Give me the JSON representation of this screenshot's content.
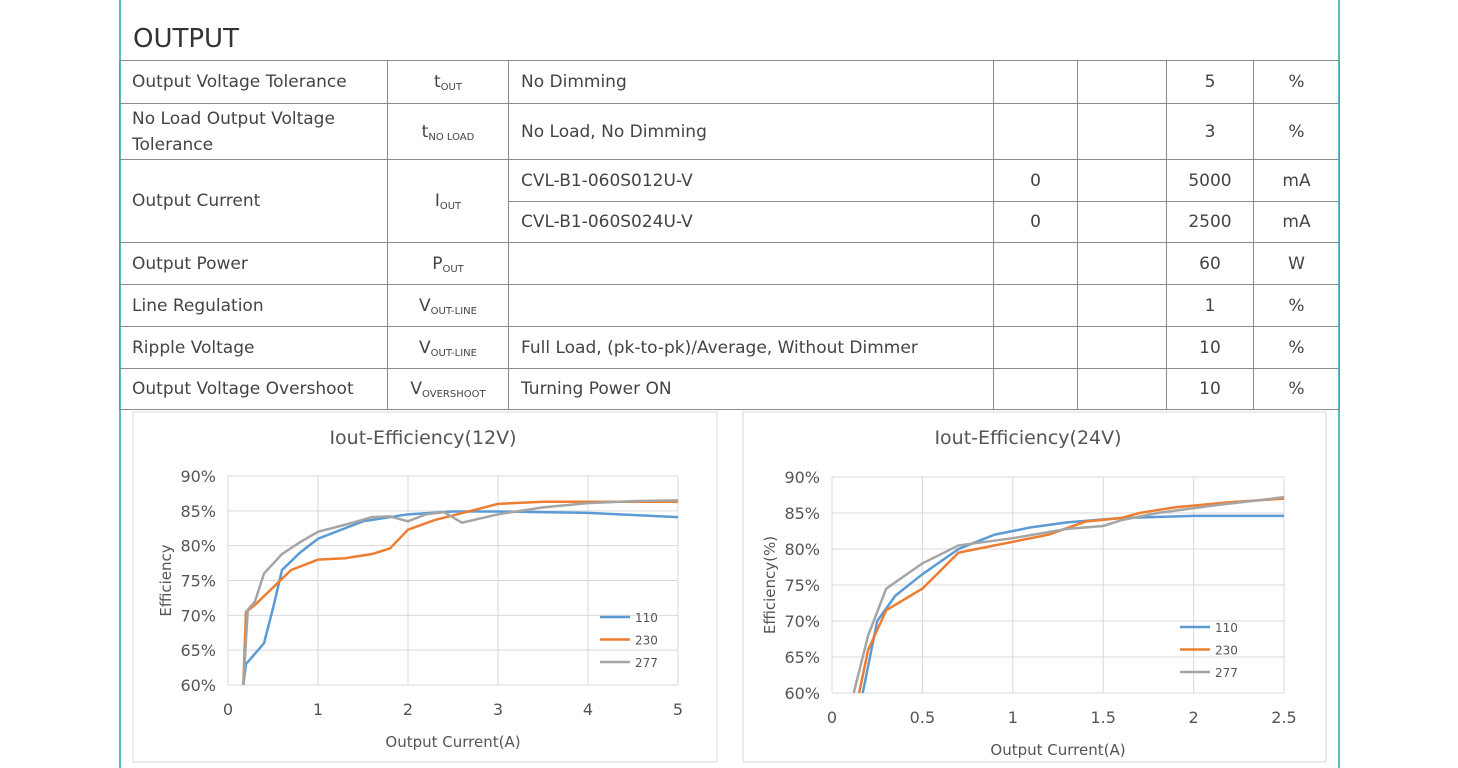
{
  "section_title": "OUTPUT",
  "table": {
    "rows": [
      {
        "parameter": "Output Voltage Tolerance",
        "symbol": "t",
        "symbol_sub": "OUT",
        "lines": [
          {
            "condition": "No Dimming",
            "max": 5,
            "unit": "%"
          }
        ]
      },
      {
        "parameter": "No Load Output Voltage Tolerance",
        "symbol": "t",
        "symbol_sub": "NO LOAD",
        "lines": [
          {
            "condition": "No Load, No Dimming",
            "max": 3,
            "unit": "%"
          }
        ]
      },
      {
        "parameter": "Output Current",
        "symbol": "I",
        "symbol_sub": "OUT",
        "lines": [
          {
            "condition": "CVL-B1-060S012U-V",
            "min": 0,
            "max": 5000,
            "unit": "mA"
          },
          {
            "condition": "CVL-B1-060S024U-V",
            "min": 0,
            "max": 2500,
            "unit": "mA"
          }
        ]
      },
      {
        "parameter": "Output Power",
        "symbol": "P",
        "symbol_sub": "OUT",
        "lines": [
          {
            "max": 60,
            "unit": "W"
          }
        ]
      },
      {
        "parameter": "Line Regulation",
        "symbol": "V",
        "symbol_sub": "OUT-LINE",
        "lines": [
          {
            "max": 1,
            "unit": "%"
          }
        ]
      },
      {
        "parameter": "Ripple Voltage",
        "symbol": "V",
        "symbol_sub": "OUT-LINE",
        "lines": [
          {
            "condition": "Full Load, (pk-to-pk)/Average, Without Dimmer",
            "max": 10,
            "unit": "%"
          }
        ]
      },
      {
        "parameter": "Output Voltage Overshoot",
        "symbol": "V",
        "symbol_sub": "OVERSHOOT",
        "lines": [
          {
            "condition": "Turning Power ON",
            "max": 10,
            "unit": "%"
          }
        ]
      }
    ]
  },
  "chart_data": [
    {
      "type": "line",
      "title": "Iout-Efficiency(12V)",
      "x_label": "Output Current(A)",
      "y_label": "Efficiency",
      "xlim": [
        0,
        5
      ],
      "xticks": [
        0,
        1,
        2,
        3,
        4,
        5
      ],
      "ylim": [
        60,
        90
      ],
      "yticks": [
        {
          "value": 60,
          "label": "60%"
        },
        {
          "value": 65,
          "label": "65%"
        },
        {
          "value": 70,
          "label": "70%"
        },
        {
          "value": 75,
          "label": "75%"
        },
        {
          "value": 80,
          "label": "80%"
        },
        {
          "value": 85,
          "label": "85%"
        },
        {
          "value": 90,
          "label": "90%"
        }
      ],
      "grid": true,
      "legend": "lower right",
      "series": [
        {
          "name": "110",
          "color": "#5b9bd5",
          "x": [
            0.17,
            0.2,
            0.3,
            0.4,
            0.5,
            0.6,
            0.8,
            1.0,
            1.5,
            2,
            2.5,
            3,
            4,
            5
          ],
          "values": [
            60,
            63,
            64.5,
            66,
            71,
            76.5,
            79,
            81,
            83.5,
            84.5,
            84.9,
            84.9,
            84.7,
            84.1
          ]
        },
        {
          "name": "230",
          "color": "#ed7d31",
          "x": [
            0.17,
            0.2,
            0.3,
            0.5,
            0.7,
            1.0,
            1.3,
            1.6,
            1.8,
            2.0,
            2.3,
            2.7,
            3,
            3.5,
            4,
            5
          ],
          "values": [
            60,
            70.5,
            71.5,
            74,
            76.5,
            78,
            78.2,
            78.8,
            79.6,
            82.3,
            83.7,
            85,
            86,
            86.3,
            86.3,
            86.3
          ]
        },
        {
          "name": "277",
          "color": "#a5a5a5",
          "x": [
            0.17,
            0.22,
            0.3,
            0.4,
            0.6,
            0.8,
            1.0,
            1.3,
            1.6,
            1.8,
            2,
            2.2,
            2.4,
            2.6,
            3,
            3.5,
            4,
            4.5,
            5
          ],
          "values": [
            60,
            70.8,
            72,
            76,
            78.8,
            80.5,
            82,
            83,
            84.1,
            84.2,
            83.5,
            84.5,
            84.8,
            83.3,
            84.5,
            85.5,
            86.1,
            86.4,
            86.5
          ]
        }
      ]
    },
    {
      "type": "line",
      "title": "Iout-Efficiency(24V)",
      "x_label": "Output Current(A)",
      "y_label": "Efficiency(%)",
      "xlim": [
        0,
        2.5
      ],
      "xticks": [
        0,
        0.5,
        1,
        1.5,
        2,
        2.5
      ],
      "ylim": [
        60,
        90
      ],
      "yticks": [
        {
          "value": 60,
          "label": "60%"
        },
        {
          "value": 65,
          "label": "65%"
        },
        {
          "value": 70,
          "label": "70%"
        },
        {
          "value": 75,
          "label": "75%"
        },
        {
          "value": 80,
          "label": "80%"
        },
        {
          "value": 85,
          "label": "85%"
        },
        {
          "value": 90,
          "label": "90%"
        }
      ],
      "grid": true,
      "legend": "lower right",
      "series": [
        {
          "name": "110",
          "color": "#5b9bd5",
          "x": [
            0.17,
            0.25,
            0.35,
            0.5,
            0.7,
            0.9,
            1.1,
            1.3,
            1.6,
            2,
            2.5
          ],
          "values": [
            60,
            70,
            73.5,
            76.5,
            80,
            82,
            83,
            83.7,
            84.3,
            84.6,
            84.6
          ]
        },
        {
          "name": "230",
          "color": "#ed7d31",
          "x": [
            0.15,
            0.2,
            0.3,
            0.5,
            0.7,
            0.9,
            1.2,
            1.4,
            1.6,
            1.7,
            1.9,
            2.2,
            2.5
          ],
          "values": [
            60,
            66,
            71.5,
            74.5,
            79.5,
            80.5,
            82,
            83.8,
            84.3,
            85,
            85.8,
            86.5,
            87
          ]
        },
        {
          "name": "277",
          "color": "#a5a5a5",
          "x": [
            0.12,
            0.2,
            0.3,
            0.5,
            0.7,
            1.0,
            1.3,
            1.5,
            1.6,
            1.8,
            2.1,
            2.5
          ],
          "values": [
            60,
            68,
            74.5,
            78,
            80.5,
            81.5,
            82.8,
            83.2,
            84,
            85,
            86,
            87.2
          ]
        }
      ]
    }
  ]
}
